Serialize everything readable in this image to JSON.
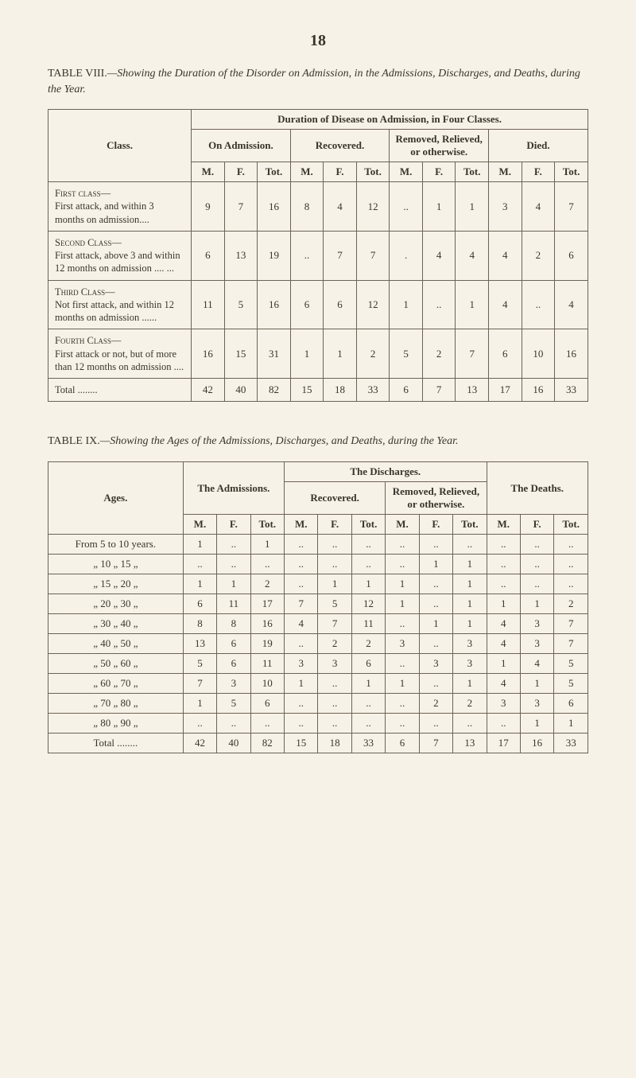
{
  "pageNumber": "18",
  "tableVIII": {
    "captionPrefix": "TABLE VIII.",
    "captionRest": "—Showing the Duration of the Disorder on Admission, in the Admissions, Discharges, and Deaths, during the Year.",
    "spanHeader": "Duration of Disease on Admission, in Four Classes.",
    "colGroups": [
      "On Admission.",
      "Recovered.",
      "Removed, Relieved, or otherwise.",
      "Died."
    ],
    "subCols": [
      "M.",
      "F.",
      "Tot."
    ],
    "classLabel": "Class.",
    "rows": [
      {
        "classHead": "First class—",
        "classDesc": "First attack, and within 3 months on admission....",
        "vals": [
          "9",
          "7",
          "16",
          "8",
          "4",
          "12",
          "..",
          "1",
          "1",
          "3",
          "4",
          "7"
        ]
      },
      {
        "classHead": "Second Class—",
        "classDesc": "First attack, above 3 and within 12 months on ad­mission .... ...",
        "vals": [
          "6",
          "13",
          "19",
          "..",
          "7",
          "7",
          ".",
          "4",
          "4",
          "4",
          "2",
          "6"
        ]
      },
      {
        "classHead": "Third Class—",
        "classDesc": "Not first attack, and within 12 months on ad­mission ......",
        "vals": [
          "11",
          "5",
          "16",
          "6",
          "6",
          "12",
          "1",
          "..",
          "1",
          "4",
          "..",
          "4"
        ]
      },
      {
        "classHead": "Fourth Class—",
        "classDesc": "First attack or not, but of more than 12 months on admission ....",
        "vals": [
          "16",
          "15",
          "31",
          "1",
          "1",
          "2",
          "5",
          "2",
          "7",
          "6",
          "10",
          "16"
        ]
      }
    ],
    "totalLabel": "Total ........",
    "totals": [
      "42",
      "40",
      "82",
      "15",
      "18",
      "33",
      "6",
      "7",
      "13",
      "17",
      "16",
      "33"
    ]
  },
  "tableIX": {
    "captionPrefix": "TABLE IX.",
    "captionRest": "—Showing the Ages of the Admissions, Discharges, and Deaths, during the Year.",
    "agesLabel": "Ages.",
    "admLabel": "The Admissions.",
    "dischLabel": "The Discharges.",
    "recovLabel": "Recovered.",
    "removedLabel": "Removed, Relieved, or otherwise.",
    "deathsLabel": "The Deaths.",
    "subCols": [
      "M.",
      "F.",
      "Tot."
    ],
    "rows": [
      {
        "age": "From 5 to 10 years.",
        "vals": [
          "1",
          "..",
          "1",
          "..",
          "..",
          "..",
          "..",
          "..",
          "..",
          "..",
          "..",
          ".."
        ]
      },
      {
        "age": "„ 10 „ 15  „",
        "vals": [
          "..",
          "..",
          "..",
          "..",
          "..",
          "..",
          "..",
          "1",
          "1",
          "..",
          "..",
          ".."
        ]
      },
      {
        "age": "„ 15 „ 20  „",
        "vals": [
          "1",
          "1",
          "2",
          "..",
          "1",
          "1",
          "1",
          "..",
          "1",
          "..",
          "..",
          ".."
        ]
      },
      {
        "age": "„ 20 „ 30  „",
        "vals": [
          "6",
          "11",
          "17",
          "7",
          "5",
          "12",
          "1",
          "..",
          "1",
          "1",
          "1",
          "2"
        ]
      },
      {
        "age": "„ 30 „ 40  „",
        "vals": [
          "8",
          "8",
          "16",
          "4",
          "7",
          "11",
          "..",
          "1",
          "1",
          "4",
          "3",
          "7"
        ]
      },
      {
        "age": "„ 40 „ 50  „",
        "vals": [
          "13",
          "6",
          "19",
          "..",
          "2",
          "2",
          "3",
          "..",
          "3",
          "4",
          "3",
          "7"
        ]
      },
      {
        "age": "„ 50 „ 60  „",
        "vals": [
          "5",
          "6",
          "11",
          "3",
          "3",
          "6",
          "..",
          "3",
          "3",
          "1",
          "4",
          "5"
        ]
      },
      {
        "age": "„ 60 „ 70  „",
        "vals": [
          "7",
          "3",
          "10",
          "1",
          "..",
          "1",
          "1",
          "..",
          "1",
          "4",
          "1",
          "5"
        ]
      },
      {
        "age": "„ 70 „ 80  „",
        "vals": [
          "1",
          "5",
          "6",
          "..",
          "..",
          "..",
          "..",
          "2",
          "2",
          "3",
          "3",
          "6"
        ]
      },
      {
        "age": "„ 80 „ 90  „",
        "vals": [
          "..",
          "..",
          "..",
          "..",
          "..",
          "..",
          "..",
          "..",
          "..",
          "..",
          "1",
          "1"
        ]
      }
    ],
    "totalLabel": "Total ........",
    "totals": [
      "42",
      "40",
      "82",
      "15",
      "18",
      "33",
      "6",
      "7",
      "13",
      "17",
      "16",
      "33"
    ]
  }
}
